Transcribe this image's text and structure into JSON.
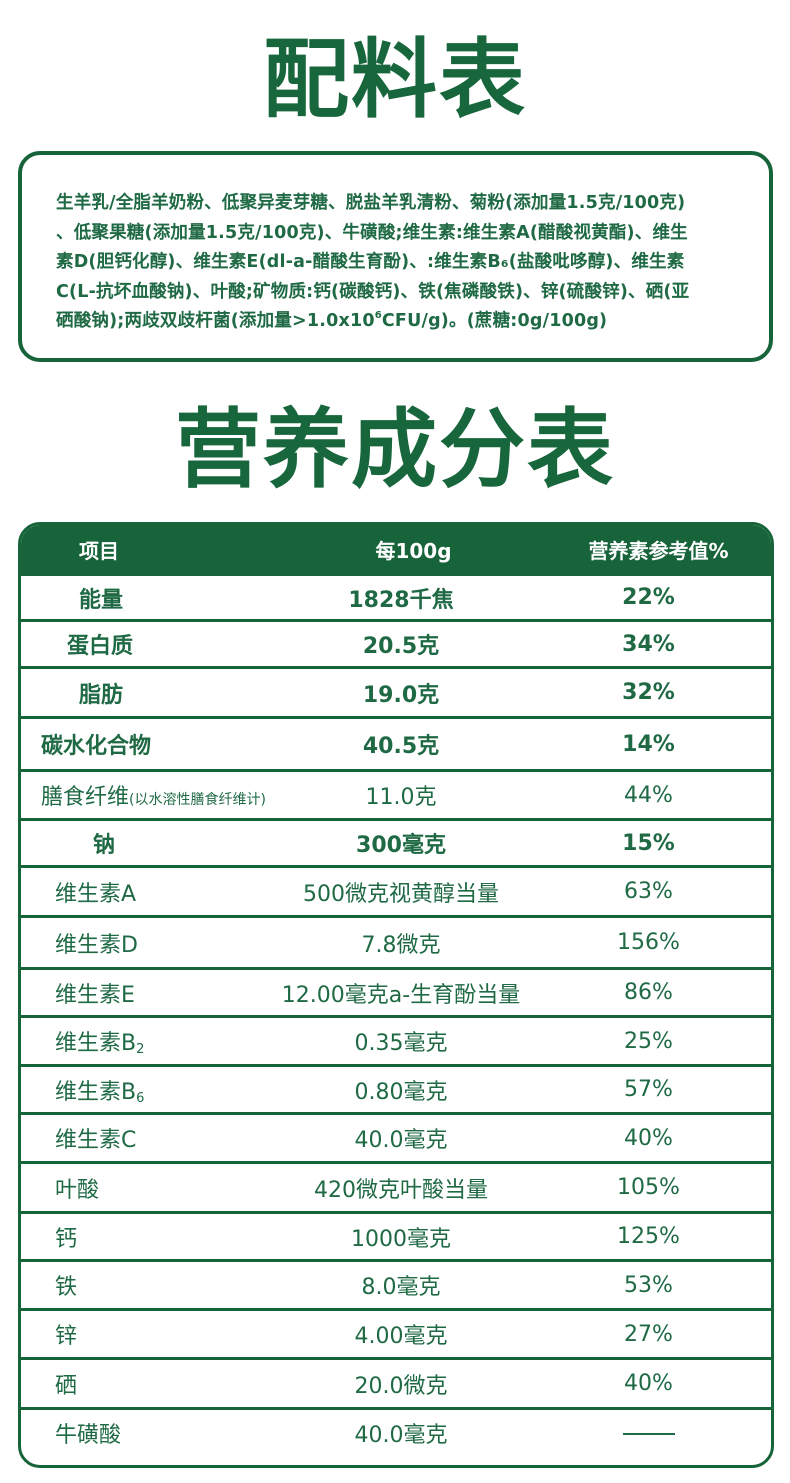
{
  "ingredients_section": {
    "title": "配料表",
    "lines": [
      "生羊乳/全脂羊奶粉、低聚异麦芽糖、脱盐羊乳清粉、菊粉(添加量1.5克/100克)",
      "、低聚果糖(添加量1.5克/100克)、牛磺酸;维生素:维生素A(醋酸视黄酯)、维生",
      "素D(胆钙化醇)、维生素E(dl-a-醋酸生育酚)、:维生素B",
      "₆(盐酸吡哆醇)、维生素",
      "C(L-抗坏血酸钠)、叶酸;矿物质:钙(碳酸钙)、铁(焦磷酸铁)、锌(硫酸锌)、硒(亚",
      "硒酸钠);两歧双歧杆菌(添加量>1.0x10",
      "6",
      "CFU/g)。(蔗糖:0g/100g)"
    ]
  },
  "nutrition_section": {
    "title": "营养成分表",
    "headers": [
      "项目",
      "每100g",
      "营养素参考值%"
    ],
    "rows": [
      {
        "item": "能量",
        "per100g": "1828千焦",
        "nrv": "22%",
        "bold": true
      },
      {
        "item": "蛋白质",
        "per100g": "20.5克",
        "nrv": "34%",
        "bold": true
      },
      {
        "item": "脂肪",
        "per100g": "19.0克",
        "nrv": "32%",
        "bold": true
      },
      {
        "item": "碳水化合物",
        "per100g": "40.5克",
        "nrv": "14%",
        "bold": true
      },
      {
        "item": "膳食纤维",
        "item_note": "(以水溶性膳食纤维计)",
        "per100g": "11.0克",
        "nrv": "44%",
        "bold": false
      },
      {
        "item": "钠",
        "per100g": "300毫克",
        "nrv": "15%",
        "bold": true
      },
      {
        "item": "维生素A",
        "per100g": "500微克视黄醇当量",
        "nrv": "63%",
        "bold": false
      },
      {
        "item": "维生素D",
        "per100g": "7.8微克",
        "nrv": "156%",
        "bold": false
      },
      {
        "item": "维生素E",
        "per100g": "12.00毫克a-生育酚当量",
        "nrv": "86%",
        "bold": false
      },
      {
        "item": "维生素B",
        "item_sub": "2",
        "per100g": "0.35毫克",
        "nrv": "25%",
        "bold": false
      },
      {
        "item": "维生素B",
        "item_sub": "6",
        "per100g": "0.80毫克",
        "nrv": "57%",
        "bold": false
      },
      {
        "item": "维生素C",
        "per100g": "40.0毫克",
        "nrv": "40%",
        "bold": false
      },
      {
        "item": "叶酸",
        "per100g": "420微克叶酸当量",
        "nrv": "105%",
        "bold": false
      },
      {
        "item": "钙",
        "per100g": "1000毫克",
        "nrv": "125%",
        "bold": false
      },
      {
        "item": "铁",
        "per100g": "8.0毫克",
        "nrv": "53%",
        "bold": false
      },
      {
        "item": "锌",
        "per100g": "4.00毫克",
        "nrv": "27%",
        "bold": false
      },
      {
        "item": "硒",
        "per100g": "20.0微克",
        "nrv": "40%",
        "bold": false
      },
      {
        "item": "牛磺酸",
        "per100g": "40.0毫克",
        "nrv": "——",
        "bold": false
      }
    ]
  },
  "colors": {
    "brand_green": "#17633a",
    "text_green": "#1f6a44",
    "background": "#ffffff"
  }
}
